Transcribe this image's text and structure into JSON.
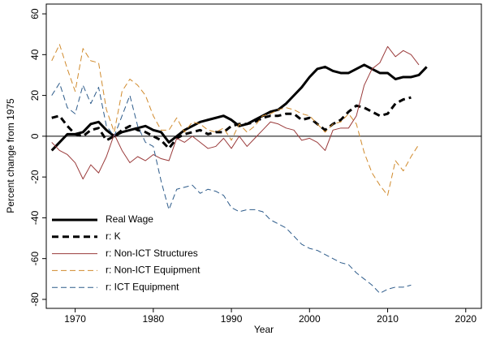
{
  "chart_data": {
    "type": "line",
    "y_label": "Percent change from 1975",
    "x_label": "Year",
    "x": [
      1967,
      1968,
      1969,
      1970,
      1971,
      1972,
      1973,
      1974,
      1975,
      1976,
      1977,
      1978,
      1979,
      1980,
      1981,
      1982,
      1983,
      1984,
      1985,
      1986,
      1987,
      1988,
      1989,
      1990,
      1991,
      1992,
      1993,
      1994,
      1995,
      1996,
      1997,
      1998,
      1999,
      2000,
      2001,
      2002,
      2003,
      2004,
      2005,
      2006,
      2007,
      2008,
      2009,
      2010,
      2011,
      2012,
      2013,
      2014,
      2015
    ],
    "xlim": [
      1966.3,
      2022
    ],
    "xticks": [
      1970,
      1980,
      1990,
      2000,
      2010,
      2020
    ],
    "ylim": [
      -84.4,
      64.8
    ],
    "yticks": [
      -80,
      -60,
      -40,
      -20,
      0,
      20,
      40,
      60
    ],
    "hline": 0,
    "legend": "bottom-left",
    "series": [
      {
        "name": "Real Wage",
        "color": "#000000",
        "width": 3,
        "dash": "solid",
        "values": [
          -7,
          -3,
          1,
          1,
          2,
          6,
          7,
          3,
          0,
          2,
          3,
          4,
          5,
          3,
          2,
          -3,
          0,
          3,
          5,
          7,
          8,
          9,
          10,
          8,
          5,
          6,
          8,
          10,
          12,
          13,
          16,
          20,
          24,
          29,
          33,
          34,
          32,
          31,
          31,
          33,
          35,
          33,
          31,
          31,
          28,
          29,
          29,
          30,
          34
        ]
      },
      {
        "name": "r: K",
        "color": "#000000",
        "width": 3,
        "dash": "dashed",
        "values": [
          9,
          10,
          5,
          1,
          0,
          3,
          4,
          -2,
          0,
          3,
          5,
          3,
          2,
          0,
          -2,
          -6,
          -1,
          1,
          2,
          3,
          1,
          2,
          2,
          5,
          6,
          6,
          7,
          9,
          10,
          10,
          11,
          11,
          8,
          9,
          6,
          3,
          6,
          8,
          12,
          15,
          14,
          12,
          10,
          11,
          16,
          18,
          19,
          null,
          null
        ]
      },
      {
        "name": "r: Non-ICT Structures",
        "color": "#9a3a3a",
        "width": 1,
        "dash": "solid",
        "values": [
          -3,
          -7,
          -9,
          -13,
          -21,
          -14,
          -18,
          -10,
          1,
          -7,
          -13,
          -10,
          -12,
          -9,
          -11,
          -12,
          -1,
          -3,
          0,
          -3,
          -6,
          -5,
          -1,
          -6,
          0,
          -5,
          -1,
          3,
          7,
          6,
          4,
          3,
          -2,
          -1,
          -3,
          -7,
          3,
          4,
          4,
          10,
          25,
          33,
          36,
          44,
          39,
          42,
          40,
          35,
          null
        ]
      },
      {
        "name": "r: Non-ICT Equipment",
        "color": "#d08a2c",
        "width": 1,
        "dash": "dashed",
        "values": [
          37,
          45,
          33,
          22,
          43,
          37,
          36,
          13,
          2,
          22,
          28,
          25,
          20,
          10,
          3,
          3,
          9,
          2,
          7,
          6,
          3,
          2,
          4,
          -2,
          6,
          2,
          5,
          10,
          11,
          13,
          14,
          13,
          11,
          10,
          6,
          2,
          6,
          7,
          11,
          6,
          -8,
          -18,
          -24,
          -29,
          -12,
          -17,
          -10,
          -4,
          null
        ]
      },
      {
        "name": "r: ICT Equipment",
        "color": "#2d5b8a",
        "width": 1,
        "dash": "dashed",
        "values": [
          20,
          26,
          14,
          11,
          25,
          16,
          24,
          5,
          0,
          10,
          20,
          5,
          -3,
          -5,
          -22,
          -36,
          -26,
          -25,
          -24,
          -28,
          -26,
          -27,
          -29,
          -35,
          -37,
          -36,
          -36,
          -37,
          -41,
          -43,
          -45,
          -49,
          -53,
          -55,
          -56,
          -58,
          -60,
          -62,
          -63,
          -67,
          -70,
          -73,
          -77,
          -75,
          -74,
          -74,
          -73,
          null,
          null
        ]
      }
    ]
  }
}
